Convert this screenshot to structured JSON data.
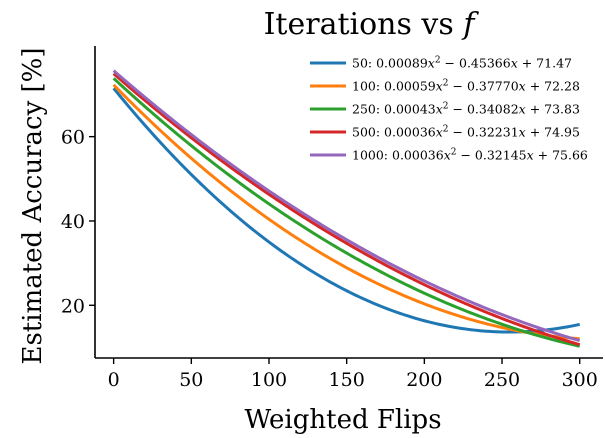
{
  "chart_data": {
    "type": "line",
    "title": "Iterations vs f",
    "title_parts": {
      "prefix": "Iterations vs ",
      "var": "f"
    },
    "xlabel": "Weighted Flips",
    "ylabel": "Estimated Accuracy [%]",
    "xlim": [
      -12,
      315
    ],
    "ylim": [
      7.5,
      81.5
    ],
    "xticks": [
      0,
      50,
      100,
      150,
      200,
      250,
      300
    ],
    "yticks": [
      20,
      40,
      60
    ],
    "x_range": [
      0,
      300
    ],
    "grid": false,
    "legend_position": "top-right",
    "series": [
      {
        "name": "50: 0.00089x² − 0.45366x + 71.47",
        "label": {
          "n": "50",
          "a": "0.00089",
          "b": "0.45366",
          "c": "71.47"
        },
        "a": 0.00089,
        "b": -0.45366,
        "c": 71.47,
        "color": "#1f77b4"
      },
      {
        "name": "100: 0.00059x² − 0.37770x + 72.28",
        "label": {
          "n": "100",
          "a": "0.00059",
          "b": "0.37770",
          "c": "72.28"
        },
        "a": 0.00059,
        "b": -0.3777,
        "c": 72.28,
        "color": "#ff7f0e"
      },
      {
        "name": "250: 0.00043x² − 0.34082x + 73.83",
        "label": {
          "n": "250",
          "a": "0.00043",
          "b": "0.34082",
          "c": "73.83"
        },
        "a": 0.00043,
        "b": -0.34082,
        "c": 73.83,
        "color": "#2ca02c"
      },
      {
        "name": "500: 0.00036x² − 0.32231x + 74.95",
        "label": {
          "n": "500",
          "a": "0.00036",
          "b": "0.32231",
          "c": "74.95"
        },
        "a": 0.00036,
        "b": -0.32231,
        "c": 74.95,
        "color": "#d62728"
      },
      {
        "name": "1000: 0.00036x² − 0.32145x + 75.66",
        "label": {
          "n": "1000",
          "a": "0.00036",
          "b": "0.32145",
          "c": "75.66"
        },
        "a": 0.00036,
        "b": -0.32145,
        "c": 75.66,
        "color": "#9467bd"
      }
    ]
  }
}
